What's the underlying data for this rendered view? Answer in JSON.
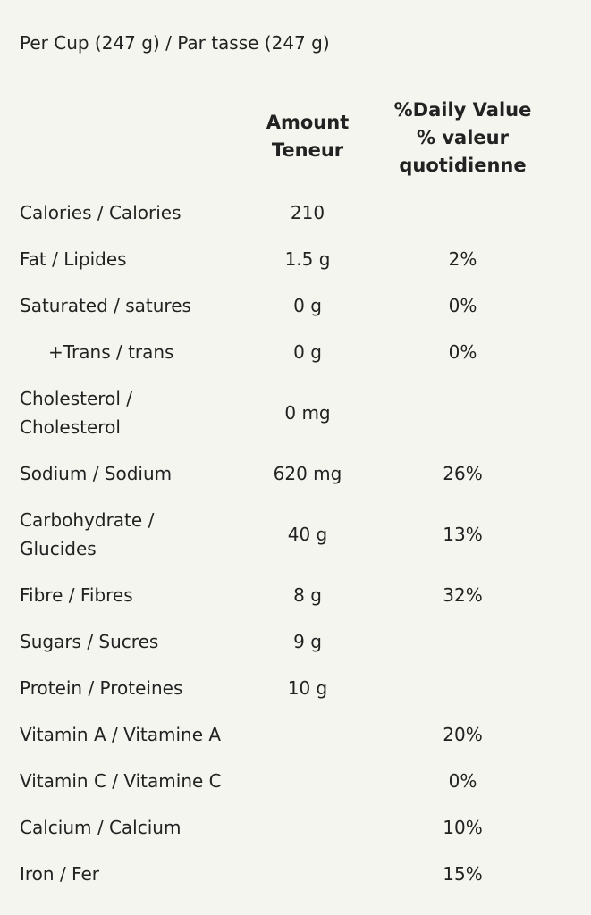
{
  "serving": "Per Cup (247 g) / Par tasse (247 g)",
  "headers": {
    "amount": [
      "Amount",
      "Teneur"
    ],
    "daily_value": [
      "%Daily Value",
      "% valeur",
      "quotidienne"
    ]
  },
  "rows": [
    {
      "name": "Calories / Calories",
      "amount": "210",
      "dv": ""
    },
    {
      "name": "Fat / Lipides",
      "amount": "1.5 g",
      "dv": "2%"
    },
    {
      "name": "Saturated / satures",
      "amount": "0 g",
      "dv": "0%"
    },
    {
      "name": "+Trans / trans",
      "amount": "0 g",
      "dv": "0%"
    },
    {
      "name": "Cholesterol / Cholesterol",
      "amount": "0 mg",
      "dv": ""
    },
    {
      "name": "Sodium / Sodium",
      "amount": "620 mg",
      "dv": "26%"
    },
    {
      "name": "Carbohydrate / Glucides",
      "amount": "40 g",
      "dv": "13%"
    },
    {
      "name": "Fibre / Fibres",
      "amount": "8 g",
      "dv": "32%"
    },
    {
      "name": "Sugars / Sucres",
      "amount": "9 g",
      "dv": ""
    },
    {
      "name": "Protein / Proteines",
      "amount": "10 g",
      "dv": ""
    },
    {
      "name": "Vitamin A / Vitamine A",
      "amount": "",
      "dv": "20%"
    },
    {
      "name": "Vitamin C / Vitamine C",
      "amount": "",
      "dv": "0%"
    },
    {
      "name": "Calcium / Calcium",
      "amount": "",
      "dv": "10%"
    },
    {
      "name": "Iron / Fer",
      "amount": "",
      "dv": "15%"
    }
  ]
}
